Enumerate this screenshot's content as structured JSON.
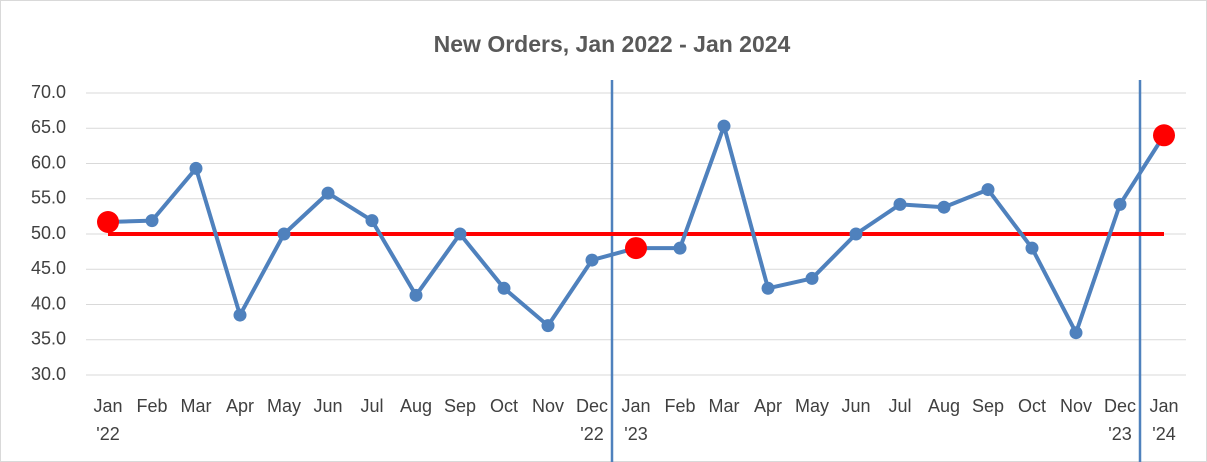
{
  "chart_data": {
    "type": "line",
    "title": "New Orders, Jan 2022 - Jan 2024",
    "categories": [
      "Jan '22",
      "Feb",
      "Mar",
      "Apr",
      "May",
      "Jun",
      "Jul",
      "Aug",
      "Sep",
      "Oct",
      "Nov",
      "Dec '22",
      "Jan '23",
      "Feb",
      "Mar",
      "Apr",
      "May",
      "Jun",
      "Jul",
      "Aug",
      "Sep",
      "Oct",
      "Nov",
      "Dec '23",
      "Jan '24"
    ],
    "series": [
      {
        "color": "#4f81bd",
        "values": [
          51.7,
          51.9,
          59.3,
          38.5,
          50.0,
          55.8,
          51.9,
          41.3,
          50.0,
          42.3,
          37.0,
          46.3,
          48.0,
          48.0,
          65.3,
          42.3,
          43.7,
          50.0,
          54.2,
          53.8,
          56.3,
          48.0,
          36.0,
          54.2,
          64.0
        ]
      },
      {
        "color": "#ff0000",
        "values": [
          51.7,
          null,
          null,
          null,
          null,
          null,
          null,
          null,
          null,
          null,
          null,
          null,
          48.0,
          null,
          null,
          null,
          null,
          null,
          null,
          null,
          null,
          null,
          null,
          null,
          64.0
        ]
      }
    ],
    "reference_line": {
      "value": 50,
      "color": "#ff0000"
    },
    "ylim": [
      30,
      70
    ],
    "yticks": [
      {
        "value": 30,
        "label": "30.0"
      },
      {
        "value": 35,
        "label": "35.0"
      },
      {
        "value": 40,
        "label": "40.0"
      },
      {
        "value": 45,
        "label": "45.0"
      },
      {
        "value": 50,
        "label": "50.0"
      },
      {
        "value": 55,
        "label": "55.0"
      },
      {
        "value": 60,
        "label": "60.0"
      },
      {
        "value": 65,
        "label": "65.0"
      },
      {
        "value": 70,
        "label": "70.0"
      }
    ],
    "grid": true
  }
}
